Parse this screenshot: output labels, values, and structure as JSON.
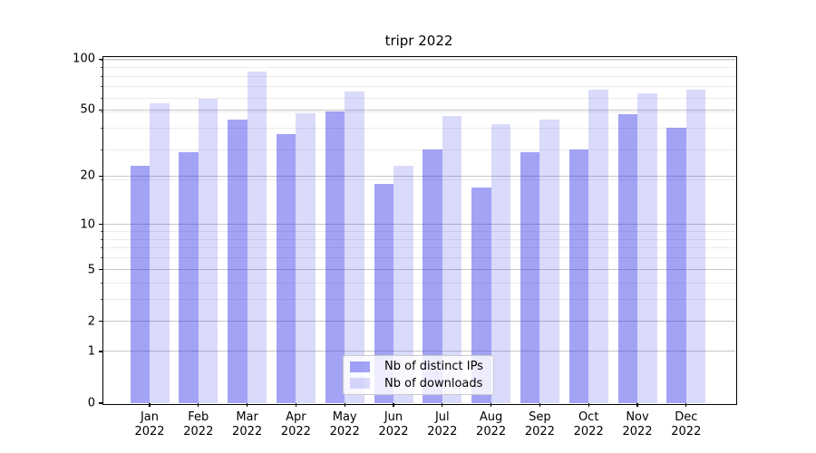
{
  "title": "tripr 2022",
  "chart_data": {
    "type": "bar",
    "title": "tripr 2022",
    "categories": [
      "Jan",
      "Feb",
      "Mar",
      "Apr",
      "May",
      "Jun",
      "Jul",
      "Aug",
      "Sep",
      "Oct",
      "Nov",
      "Dec"
    ],
    "category_year": "2022",
    "series": [
      {
        "name": "Nb of distinct IPs",
        "color": "rgba(50,50,235,0.45)",
        "values": [
          23,
          28,
          44,
          36,
          49,
          18,
          29,
          17,
          28,
          29,
          47,
          39
        ]
      },
      {
        "name": "Nb of downloads",
        "color": "rgba(50,50,235,0.18)",
        "values": [
          55,
          58,
          84,
          48,
          64,
          23,
          46,
          41,
          44,
          66,
          63,
          66
        ]
      }
    ],
    "xlabel": "",
    "ylabel": "",
    "yscale": "log1p",
    "ylim": [
      0,
      104
    ],
    "y_major_ticks": [
      0,
      1,
      2,
      5,
      10,
      20,
      50,
      100
    ],
    "y_minor_ticks": [
      3,
      4,
      6,
      7,
      8,
      9,
      19,
      29,
      39,
      49,
      59,
      69,
      79,
      89,
      99
    ],
    "grid": "horizontal",
    "legend_position": "lower center",
    "colors": {
      "grid_major": "#c6c6c6",
      "grid_minor": "#ebebeb",
      "spine": "#000000",
      "background": "#ffffff"
    }
  }
}
